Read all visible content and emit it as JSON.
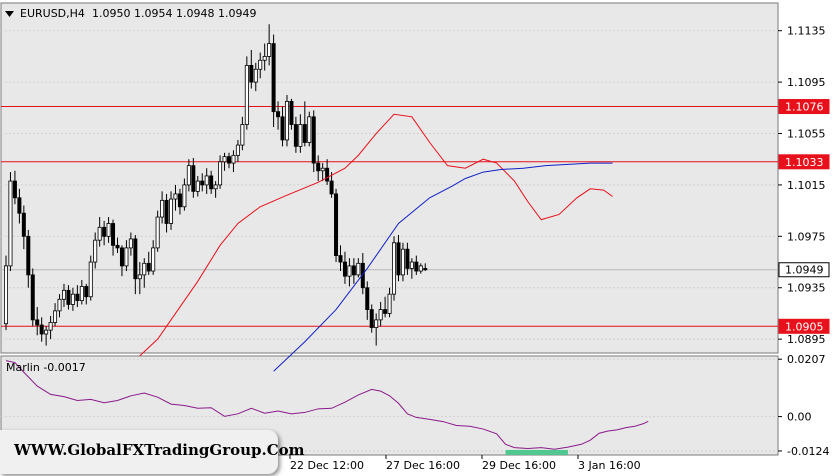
{
  "header": {
    "symbol": "EURUSD,H4",
    "ohlc": "1.0950 1.0954 1.0948 1.0949",
    "dropdown_icon": "triangle-down-icon"
  },
  "indicator": {
    "label": "Marlin -0.0017"
  },
  "watermark": {
    "text": "WWW.GlobalFXTradingGroup.Com"
  },
  "colors": {
    "bull": "#ffffff",
    "bear": "#000000",
    "sma_short": "#e8101a",
    "sma_long": "#1020c8",
    "levels": "#e8101a",
    "osc": "#8a1a8a",
    "highlight": "#50c890",
    "bg": "#e8e8e8"
  },
  "chart_data": {
    "type": "candlestick",
    "symbol": "EURUSD",
    "timeframe": "H4",
    "ylim": [
      1.0885,
      1.1155
    ],
    "yticks": [
      "1.1135",
      "1.1095",
      "1.1055",
      "1.1015",
      "1.0975",
      "1.0935",
      "1.0895"
    ],
    "xticks": [
      "22 Dec 12:00",
      "27 Dec 16:00",
      "29 Dec 16:00",
      "3 Jan 16:00"
    ],
    "levels": [
      {
        "value": 1.1076,
        "label": "1.1076"
      },
      {
        "value": 1.1033,
        "label": "1.1033"
      },
      {
        "value": 1.0905,
        "label": "1.0905"
      }
    ],
    "current_price": {
      "value": 1.0949,
      "label": "1.0949"
    },
    "candles": [
      [
        1.0907,
        1.096,
        1.0902,
        1.0952
      ],
      [
        1.0952,
        1.1025,
        1.0948,
        1.1018
      ],
      [
        1.1018,
        1.1026,
        1.1,
        1.1005
      ],
      [
        1.1005,
        1.1012,
        1.0985,
        1.0993
      ],
      [
        1.0993,
        1.0999,
        1.0965,
        1.0975
      ],
      [
        1.0975,
        1.098,
        1.0935,
        1.0945
      ],
      [
        1.0945,
        1.095,
        1.0905,
        1.091
      ],
      [
        1.091,
        1.092,
        1.0898,
        1.0906
      ],
      [
        1.0906,
        1.0912,
        1.0893,
        1.0899
      ],
      [
        1.0899,
        1.0905,
        1.089,
        1.0902
      ],
      [
        1.0902,
        1.0913,
        1.0895,
        1.0908
      ],
      [
        1.0908,
        1.0923,
        1.0905,
        1.0917
      ],
      [
        1.0917,
        1.093,
        1.0912,
        1.0926
      ],
      [
        1.0926,
        1.0938,
        1.092,
        1.0933
      ],
      [
        1.0933,
        1.0937,
        1.0918,
        1.0922
      ],
      [
        1.0922,
        1.0935,
        1.0917,
        1.093
      ],
      [
        1.093,
        1.0937,
        1.092,
        1.0925
      ],
      [
        1.0925,
        1.0941,
        1.0922,
        1.0936
      ],
      [
        1.0936,
        1.0938,
        1.0922,
        1.0928
      ],
      [
        1.0928,
        1.096,
        1.0925,
        1.0955
      ],
      [
        1.0955,
        1.0978,
        1.095,
        1.0972
      ],
      [
        1.0972,
        1.099,
        1.0967,
        1.0982
      ],
      [
        1.0982,
        1.0987,
        1.0968,
        1.0975
      ],
      [
        1.0975,
        1.099,
        1.097,
        1.0985
      ],
      [
        1.0985,
        1.0988,
        1.096,
        1.0968
      ],
      [
        1.0968,
        1.0974,
        1.0962,
        1.0966
      ],
      [
        1.0966,
        1.0968,
        1.0944,
        1.0952
      ],
      [
        1.0952,
        1.0972,
        1.0948,
        1.0966
      ],
      [
        1.0966,
        1.0978,
        1.096,
        1.0973
      ],
      [
        1.0973,
        1.0976,
        1.093,
        1.0942
      ],
      [
        1.0942,
        1.0955,
        1.093,
        1.0945
      ],
      [
        1.0945,
        1.0958,
        1.0935,
        1.0954
      ],
      [
        1.0954,
        1.0963,
        1.0945,
        1.0948
      ],
      [
        1.0948,
        1.0972,
        1.0945,
        1.0966
      ],
      [
        1.0966,
        1.0995,
        1.0963,
        1.099
      ],
      [
        1.099,
        1.101,
        1.0985,
        1.1003
      ],
      [
        1.1003,
        1.1008,
        1.0978,
        1.0985
      ],
      [
        1.0985,
        1.101,
        1.098,
        1.1004
      ],
      [
        1.1004,
        1.1015,
        1.0995,
        1.1008
      ],
      [
        1.1008,
        1.1012,
        1.0992,
        1.0998
      ],
      [
        1.0998,
        1.102,
        1.0995,
        1.1015
      ],
      [
        1.1015,
        1.1035,
        1.101,
        1.103
      ],
      [
        1.103,
        1.1036,
        1.1005,
        1.101
      ],
      [
        1.101,
        1.1022,
        1.1006,
        1.1018
      ],
      [
        1.1018,
        1.1024,
        1.101,
        1.1015
      ],
      [
        1.1015,
        1.1028,
        1.1008,
        1.1022
      ],
      [
        1.1022,
        1.1026,
        1.1008,
        1.1012
      ],
      [
        1.1012,
        1.1018,
        1.1005,
        1.1015
      ],
      [
        1.1015,
        1.1038,
        1.1012,
        1.1033
      ],
      [
        1.1033,
        1.104,
        1.1026,
        1.1037
      ],
      [
        1.1037,
        1.104,
        1.1028,
        1.1032
      ],
      [
        1.1032,
        1.1042,
        1.1025,
        1.1038
      ],
      [
        1.1038,
        1.105,
        1.1033,
        1.1046
      ],
      [
        1.1046,
        1.1068,
        1.1042,
        1.1062
      ],
      [
        1.1062,
        1.1115,
        1.1058,
        1.1108
      ],
      [
        1.1108,
        1.112,
        1.109,
        1.1095
      ],
      [
        1.1095,
        1.111,
        1.1088,
        1.1105
      ],
      [
        1.1105,
        1.1118,
        1.1098,
        1.1112
      ],
      [
        1.1112,
        1.1125,
        1.1104,
        1.1115
      ],
      [
        1.1115,
        1.114,
        1.1108,
        1.1125
      ],
      [
        1.1125,
        1.1132,
        1.106,
        1.1072
      ],
      [
        1.1072,
        1.108,
        1.1058,
        1.1068
      ],
      [
        1.1068,
        1.1076,
        1.1045,
        1.105
      ],
      [
        1.105,
        1.1085,
        1.1045,
        1.108
      ],
      [
        1.108,
        1.1082,
        1.1058,
        1.1062
      ],
      [
        1.1062,
        1.1068,
        1.104,
        1.1045
      ],
      [
        1.1045,
        1.107,
        1.104,
        1.1062
      ],
      [
        1.1062,
        1.108,
        1.1045,
        1.1048
      ],
      [
        1.1048,
        1.1072,
        1.1045,
        1.1068
      ],
      [
        1.1068,
        1.1073,
        1.1025,
        1.1032
      ],
      [
        1.1032,
        1.1038,
        1.1018,
        1.1026
      ],
      [
        1.1026,
        1.1032,
        1.1018,
        1.1028
      ],
      [
        1.1028,
        1.1035,
        1.1015,
        1.1018
      ],
      [
        1.1018,
        1.1025,
        1.1005,
        1.1008
      ],
      [
        1.1008,
        1.1012,
        1.0955,
        1.096
      ],
      [
        1.096,
        1.0968,
        1.0948,
        1.0955
      ],
      [
        1.0955,
        1.0963,
        1.0938,
        1.0944
      ],
      [
        1.0944,
        1.0958,
        1.0936,
        1.0952
      ],
      [
        1.0952,
        1.0958,
        1.0938,
        1.0945
      ],
      [
        1.0945,
        1.0958,
        1.0943,
        1.0954
      ],
      [
        1.0954,
        1.0962,
        1.093,
        1.0935
      ],
      [
        1.0935,
        1.094,
        1.091,
        1.0918
      ],
      [
        1.0918,
        1.0922,
        1.09,
        1.0904
      ],
      [
        1.0904,
        1.0915,
        1.089,
        1.091
      ],
      [
        1.091,
        1.0924,
        1.0905,
        1.0918
      ],
      [
        1.0918,
        1.0928,
        1.0912,
        1.0915
      ],
      [
        1.0915,
        1.0935,
        1.0912,
        1.093
      ],
      [
        1.093,
        1.0975,
        1.0925,
        1.097
      ],
      [
        1.097,
        1.0976,
        1.094,
        1.0945
      ],
      [
        1.0945,
        1.097,
        1.094,
        1.0965
      ],
      [
        1.0965,
        1.097,
        1.0945,
        1.095
      ],
      [
        1.095,
        1.0958,
        1.0942,
        1.0955
      ],
      [
        1.0955,
        1.096,
        1.0945,
        1.0948
      ],
      [
        1.0948,
        1.0954,
        1.0946,
        1.0952
      ],
      [
        1.095,
        1.0954,
        1.0948,
        1.0949
      ]
    ],
    "ma_short": [
      [
        30,
        1.0882
      ],
      [
        34,
        1.0895
      ],
      [
        38,
        1.0915
      ],
      [
        43,
        1.094
      ],
      [
        48,
        1.0968
      ],
      [
        52,
        1.0985
      ],
      [
        57,
        1.0998
      ],
      [
        63,
        1.1007
      ],
      [
        70,
        1.1017
      ],
      [
        76,
        1.1028
      ],
      [
        79,
        1.1038
      ],
      [
        83,
        1.1055
      ],
      [
        87,
        1.107
      ],
      [
        91,
        1.1068
      ],
      [
        95,
        1.1048
      ],
      [
        99,
        1.103
      ],
      [
        103,
        1.1028
      ],
      [
        107,
        1.1035
      ],
      [
        110,
        1.1032
      ],
      [
        114,
        1.1018
      ],
      [
        117,
        1.1002
      ],
      [
        120,
        1.0988
      ],
      [
        124,
        1.0992
      ],
      [
        128,
        1.1005
      ],
      [
        131,
        1.1012
      ],
      [
        134,
        1.1011
      ],
      [
        136,
        1.1006
      ]
    ],
    "ma_long": [
      [
        60,
        1.087
      ],
      [
        67,
        1.0893
      ],
      [
        74,
        1.0918
      ],
      [
        81,
        1.095
      ],
      [
        88,
        1.0985
      ],
      [
        95,
        1.1005
      ],
      [
        100,
        1.1014
      ],
      [
        103,
        1.102
      ],
      [
        107,
        1.1025
      ],
      [
        111,
        1.1027
      ],
      [
        116,
        1.1028
      ],
      [
        121,
        1.103
      ],
      [
        126,
        1.1031
      ],
      [
        131,
        1.1032
      ],
      [
        136,
        1.1032
      ]
    ],
    "oscillator": {
      "name": "Marlin",
      "value": -0.0017,
      "ylim": [
        -0.0135,
        0.0215
      ],
      "yticks": [
        "0.0207",
        "0.00",
        "-0.0124"
      ],
      "values": [
        [
          0,
          0.0202
        ],
        [
          2,
          0.0195
        ],
        [
          4,
          0.016
        ],
        [
          7,
          0.011
        ],
        [
          10,
          0.008
        ],
        [
          13,
          0.0072
        ],
        [
          16,
          0.0058
        ],
        [
          19,
          0.0062
        ],
        [
          22,
          0.005
        ],
        [
          25,
          0.0058
        ],
        [
          28,
          0.0075
        ],
        [
          31,
          0.0085
        ],
        [
          34,
          0.007
        ],
        [
          37,
          0.0045
        ],
        [
          40,
          0.004
        ],
        [
          43,
          0.003
        ],
        [
          46,
          0.0032
        ],
        [
          49,
          0.0001
        ],
        [
          52,
          0.001
        ],
        [
          55,
          0.003
        ],
        [
          58,
          0.0012
        ],
        [
          61,
          0.002
        ],
        [
          64,
          0.001
        ],
        [
          67,
          0.0015
        ],
        [
          70,
          0.0028
        ],
        [
          73,
          0.003
        ],
        [
          76,
          0.0052
        ],
        [
          79,
          0.0078
        ],
        [
          82,
          0.0098
        ],
        [
          84,
          0.0092
        ],
        [
          86,
          0.0075
        ],
        [
          88,
          0.0048
        ],
        [
          90,
          0.001
        ],
        [
          92,
          -0.0003
        ],
        [
          95,
          -0.001
        ],
        [
          98,
          -0.0018
        ],
        [
          101,
          -0.0032
        ],
        [
          104,
          -0.0035
        ],
        [
          107,
          -0.0045
        ],
        [
          110,
          -0.0062
        ],
        [
          112,
          -0.01
        ],
        [
          114,
          -0.0112
        ],
        [
          117,
          -0.0115
        ],
        [
          120,
          -0.0112
        ],
        [
          123,
          -0.0118
        ],
        [
          126,
          -0.011
        ],
        [
          129,
          -0.01
        ],
        [
          131,
          -0.0085
        ],
        [
          133,
          -0.006
        ],
        [
          135,
          -0.0052
        ],
        [
          137,
          -0.0048
        ],
        [
          139,
          -0.004
        ],
        [
          141,
          -0.0035
        ],
        [
          143,
          -0.0025
        ],
        [
          144,
          -0.0017
        ]
      ],
      "highlight_range": [
        112,
        126
      ]
    }
  }
}
